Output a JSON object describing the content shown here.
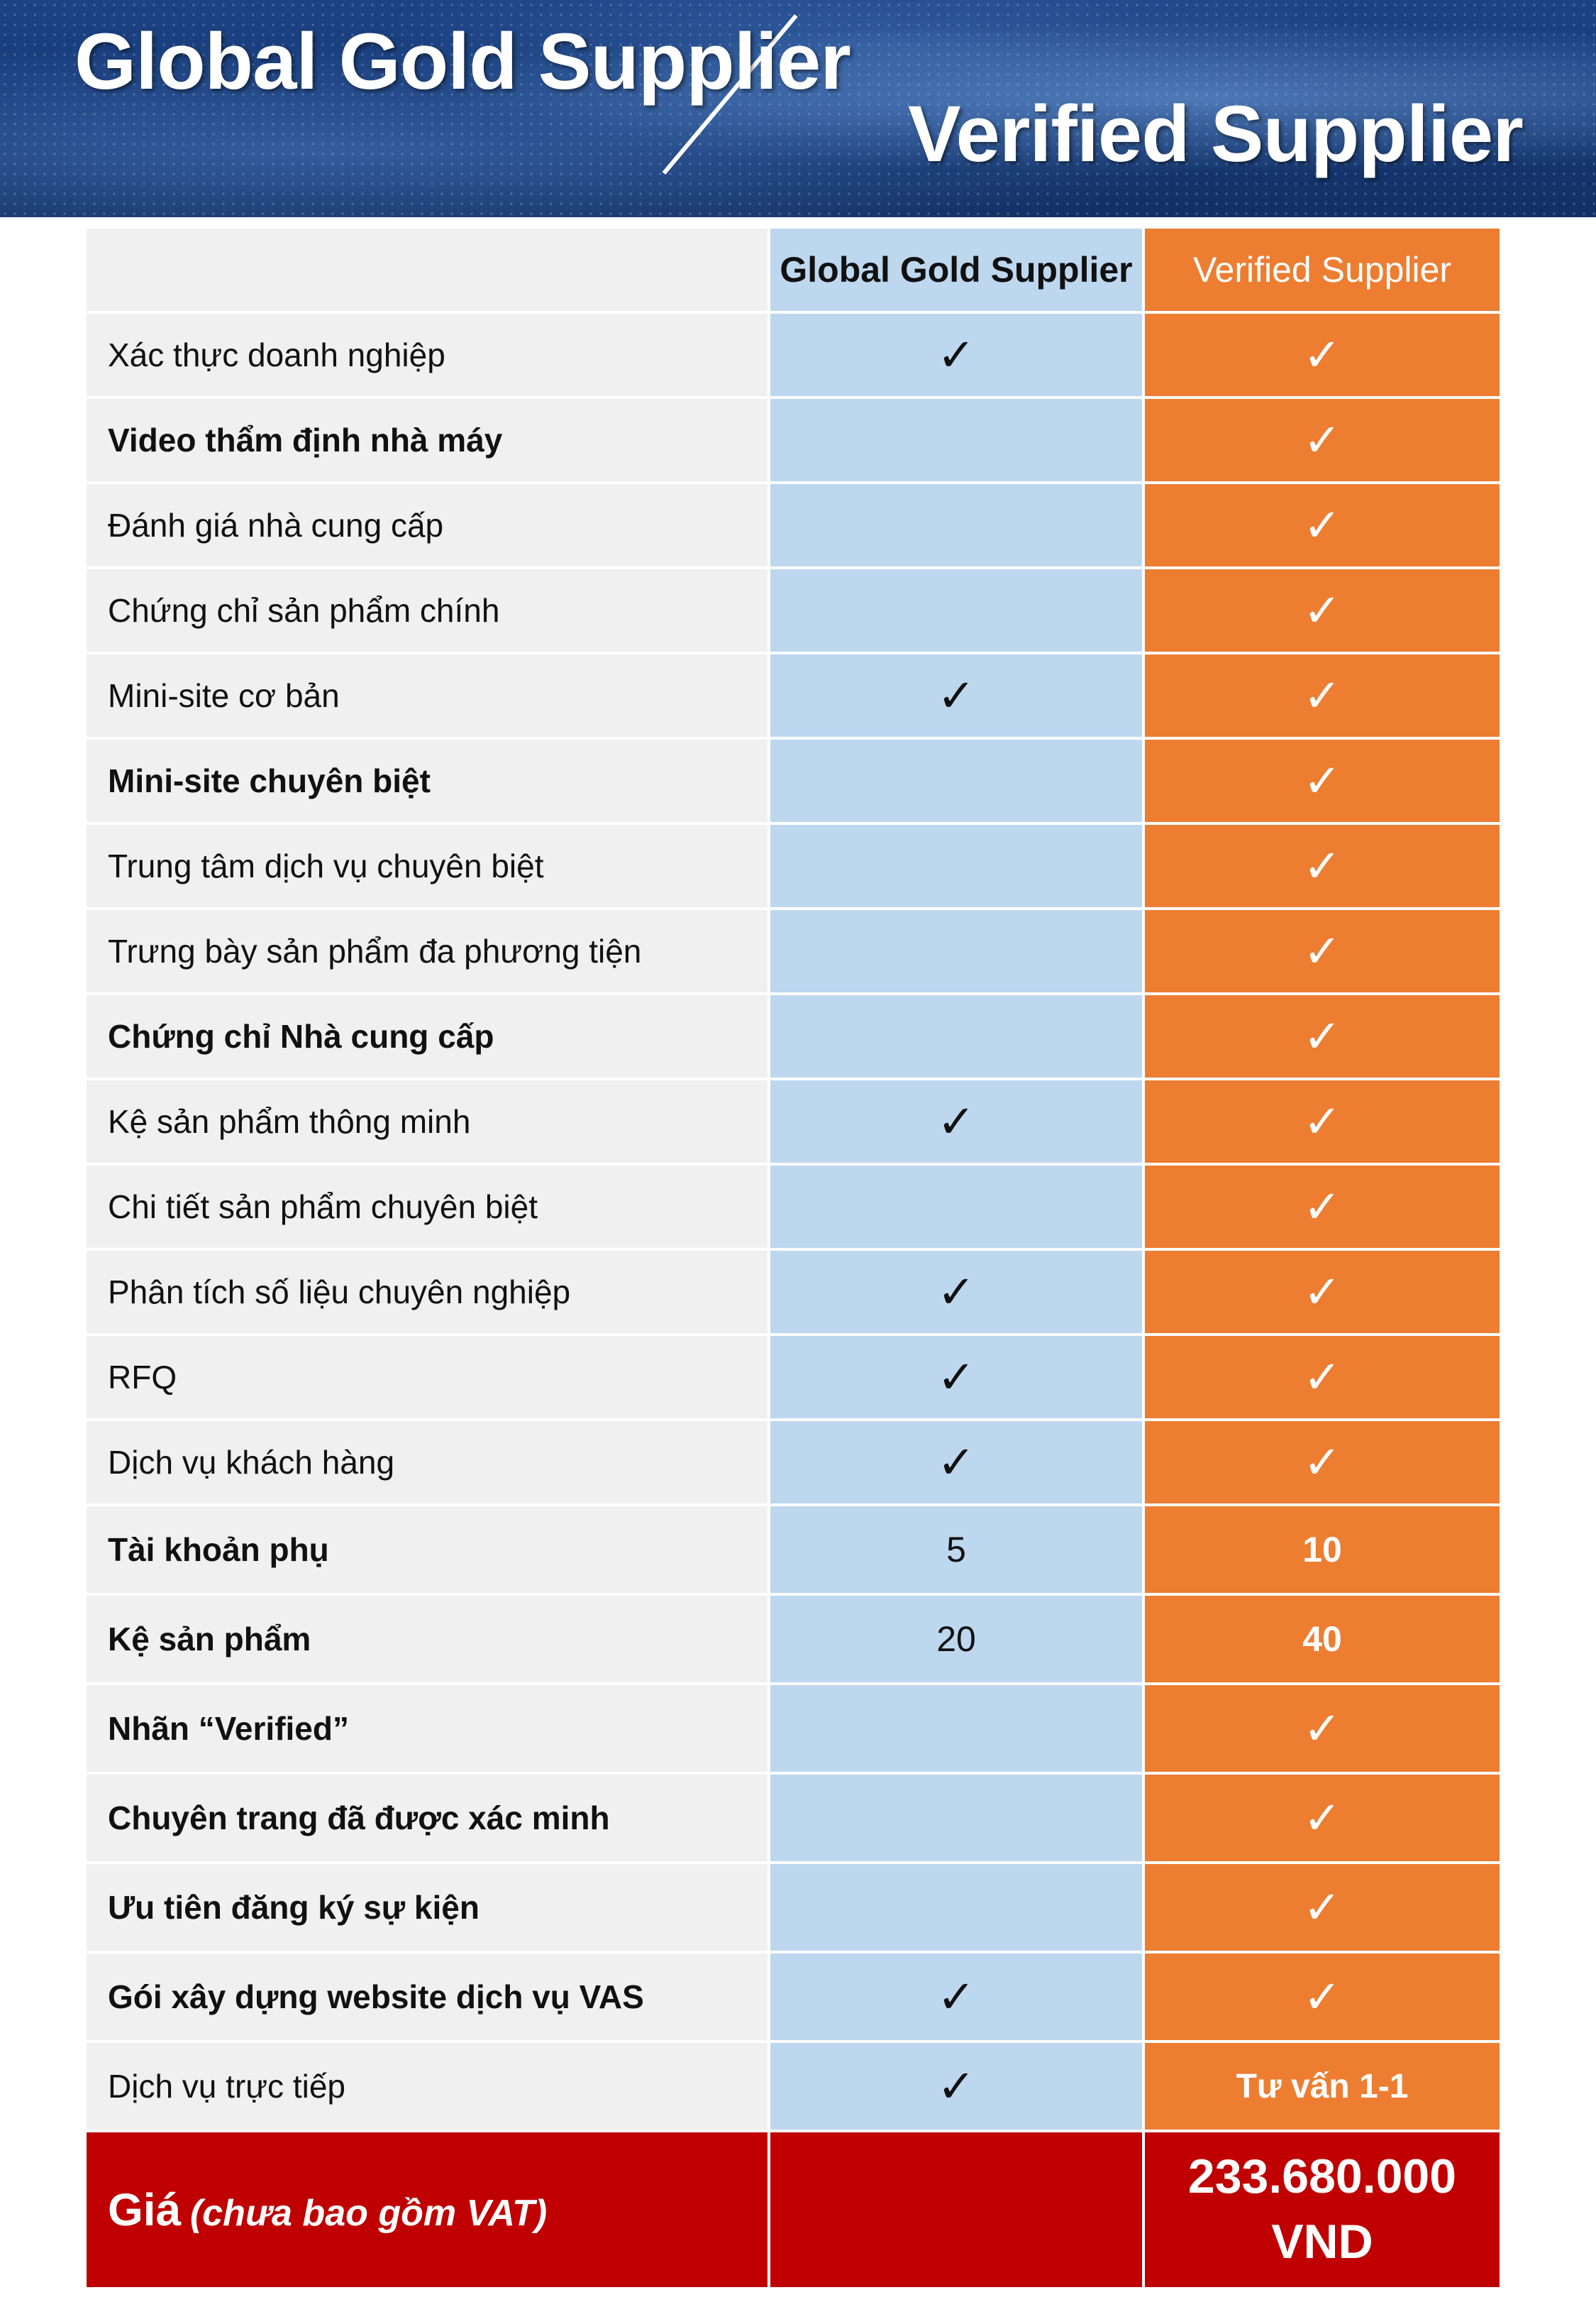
{
  "banner": {
    "title_left": "Global Gold Supplier",
    "title_right": "Verified Supplier"
  },
  "table": {
    "col_gold": "Global Gold Supplier",
    "col_verified": "Verified Supplier",
    "colors": {
      "gold_bg": "#bdd7ee",
      "verified_bg": "#ed7d31",
      "feature_bg": "#f0f0f0",
      "price_bg": "#c00000"
    },
    "rows": [
      {
        "feature": "Xác thực doanh nghiệp",
        "gold": "✓",
        "verified": "✓"
      },
      {
        "feature": "Video thẩm định nhà máy",
        "gold": "",
        "verified": "✓"
      },
      {
        "feature": "Đánh giá nhà cung cấp",
        "gold": "",
        "verified": "✓"
      },
      {
        "feature": "Chứng chỉ sản phẩm chính",
        "gold": "",
        "verified": "✓"
      },
      {
        "feature": "Mini-site cơ bản",
        "gold": "✓",
        "verified": "✓"
      },
      {
        "feature": "Mini-site chuyên biệt",
        "gold": "",
        "verified": "✓"
      },
      {
        "feature": "Trung tâm dịch vụ chuyên biệt",
        "gold": "",
        "verified": "✓"
      },
      {
        "feature": "Trưng bày sản phẩm đa phương tiện",
        "gold": "",
        "verified": "✓"
      },
      {
        "feature": "Chứng chỉ Nhà cung cấp",
        "gold": "",
        "verified": "✓"
      },
      {
        "feature": "Kệ sản phẩm thông minh",
        "gold": "✓",
        "verified": "✓"
      },
      {
        "feature": "Chi tiết sản phẩm chuyên biệt",
        "gold": "",
        "verified": "✓"
      },
      {
        "feature": "Phân tích số liệu chuyên nghiệp",
        "gold": "✓",
        "verified": "✓"
      },
      {
        "feature": "RFQ",
        "gold": "✓",
        "verified": "✓"
      },
      {
        "feature": "Dịch vụ khách hàng",
        "gold": "✓",
        "verified": "✓"
      },
      {
        "feature": "Tài khoản phụ",
        "gold": "5",
        "verified": "10"
      },
      {
        "feature": "Kệ sản phẩm",
        "gold": "20",
        "verified": "40"
      },
      {
        "feature": "Nhãn “Verified”",
        "gold": "",
        "verified": "✓"
      },
      {
        "feature": "Chuyên trang đã được xác minh",
        "gold": "",
        "verified": "✓"
      },
      {
        "feature": "Ưu tiên đăng ký sự kiện",
        "gold": "",
        "verified": "✓"
      },
      {
        "feature": "Gói xây dựng website dịch vụ VAS",
        "gold": "✓",
        "verified": "✓"
      },
      {
        "feature": "Dịch vụ trực tiếp",
        "gold": "✓",
        "verified": "Tư vấn 1-1"
      }
    ],
    "price": {
      "label": "Giá",
      "note": "(chưa bao gồm VAT)",
      "gold": "",
      "verified_line1": "233.680.000",
      "verified_line2": "VND"
    }
  }
}
